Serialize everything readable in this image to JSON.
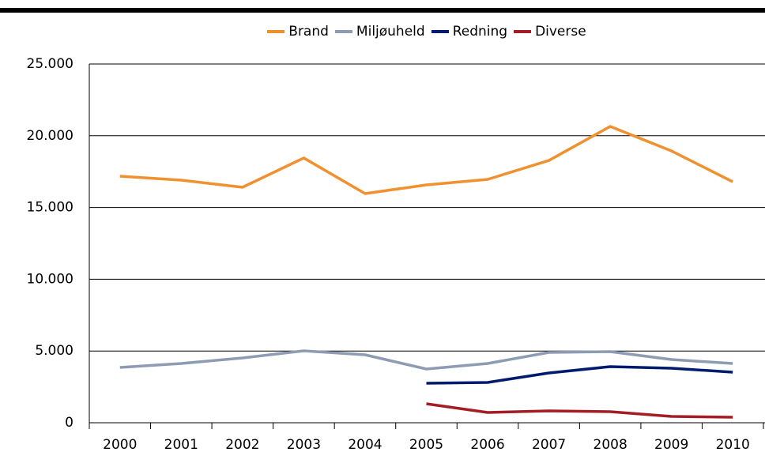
{
  "chart_data": {
    "type": "line",
    "categories": [
      "2000",
      "2001",
      "2002",
      "2003",
      "2004",
      "2005",
      "2006",
      "2007",
      "2008",
      "2009",
      "2010"
    ],
    "series": [
      {
        "name": "Brand",
        "color": "#f0902f",
        "values": [
          17180,
          16905,
          16410,
          18450,
          15970,
          16575,
          16960,
          18280,
          20650,
          18940,
          16795
        ]
      },
      {
        "name": "Miljøuheld",
        "color": "#8d9bb3",
        "values": [
          3855,
          4130,
          4515,
          5010,
          4735,
          3745,
          4130,
          4900,
          4955,
          4405,
          4130
        ]
      },
      {
        "name": "Redning",
        "color": "#001a6e",
        "values": [
          null,
          null,
          null,
          null,
          null,
          2755,
          2810,
          3470,
          3910,
          3800,
          3525
        ]
      },
      {
        "name": "Diverse",
        "color": "#a51d24",
        "values": [
          null,
          null,
          null,
          null,
          null,
          1320,
          715,
          825,
          770,
          440,
          385
        ]
      }
    ],
    "ylim": [
      0,
      25000
    ],
    "yticks": [
      0,
      {
        "value": 5000,
        "label": "5.000"
      },
      {
        "value": 10000,
        "label": "10.000"
      },
      {
        "value": 15000,
        "label": "15.000"
      },
      {
        "value": 20000,
        "label": "20.000"
      },
      {
        "value": 25000,
        "label": "25.000"
      }
    ],
    "grid": true,
    "legend": "top"
  }
}
